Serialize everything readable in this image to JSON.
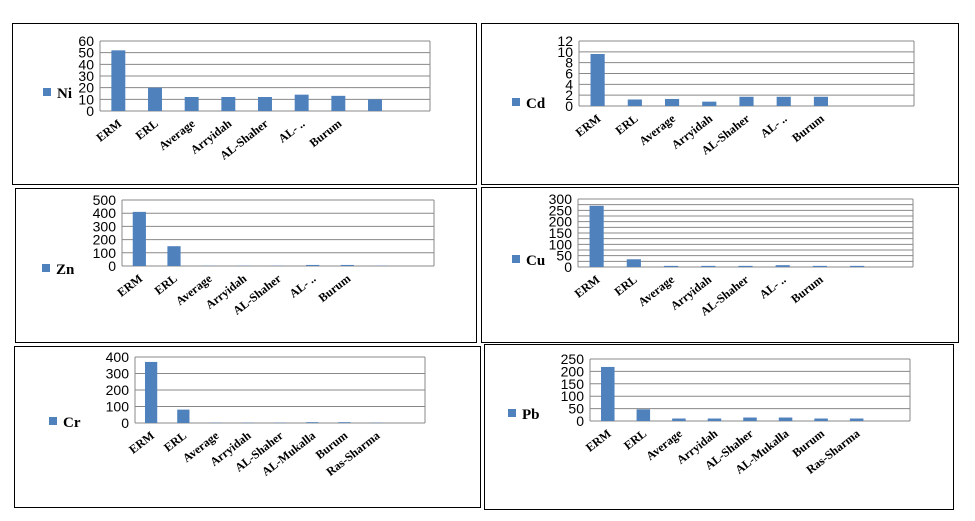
{
  "chart_data": [
    {
      "type": "bar",
      "series": [
        {
          "name": "Ni",
          "values": [
            52,
            20,
            12,
            12,
            12,
            14,
            13,
            10,
            null
          ]
        }
      ],
      "categories": [
        "ERM",
        "ERL",
        "Average",
        "Arryidah",
        "AL-Shaher",
        "AL- ..",
        "Burum",
        "",
        ""
      ],
      "ylim": [
        0,
        60
      ],
      "yticks": [
        0,
        10,
        20,
        30,
        40,
        50,
        60
      ],
      "grid": true,
      "legend": "left",
      "color": "#4F81BD"
    },
    {
      "type": "bar",
      "series": [
        {
          "name": "Cd",
          "values": [
            9.6,
            1.2,
            1.3,
            0.8,
            1.7,
            1.7,
            1.7,
            null,
            null
          ]
        }
      ],
      "categories": [
        "ERM",
        "ERL",
        "Average",
        "Arryidah",
        "AL-Shaher",
        "AL- ..",
        "Burum",
        "",
        ""
      ],
      "ylim": [
        0,
        12
      ],
      "yticks": [
        0,
        2,
        4,
        6,
        8,
        10,
        12
      ],
      "grid": true,
      "legend": "left",
      "color": "#4F81BD"
    },
    {
      "type": "bar",
      "series": [
        {
          "name": "Zn",
          "values": [
            410,
            150,
            2,
            2,
            2,
            8,
            8,
            2,
            null
          ]
        }
      ],
      "categories": [
        "ERM",
        "ERL",
        "Average",
        "Arryidah",
        "AL-Shaher",
        "AL- ..",
        "Burum",
        "",
        ""
      ],
      "ylim": [
        0,
        500
      ],
      "yticks": [
        0,
        100,
        200,
        300,
        400,
        500
      ],
      "grid": true,
      "legend": "left",
      "color": "#4F81BD"
    },
    {
      "type": "bar",
      "series": [
        {
          "name": "Cu",
          "values": [
            270,
            34,
            5,
            5,
            5,
            8,
            5,
            5,
            null
          ]
        }
      ],
      "categories": [
        "ERM",
        "ERL",
        "Average",
        "Arryidah",
        "AL-Shaher",
        "AL- ..",
        "Burum",
        "",
        ""
      ],
      "ylim": [
        0,
        300
      ],
      "yticks": [
        0,
        25,
        50,
        75,
        100,
        125,
        150,
        175,
        200,
        225,
        250,
        275,
        300
      ],
      "yticklabels": [
        "0",
        "",
        "50",
        "",
        "100",
        "",
        "150",
        "",
        "200",
        "",
        "250",
        "",
        "300"
      ],
      "grid": true,
      "legend": "left",
      "color": "#4F81BD"
    },
    {
      "type": "bar",
      "series": [
        {
          "name": "Cr",
          "values": [
            370,
            81,
            2,
            2,
            2,
            5,
            5,
            2,
            null
          ]
        }
      ],
      "categories": [
        "ERM",
        "ERL",
        "Average",
        "Arryidah",
        "AL-Shaher",
        "AL-Mukalla",
        "Burum",
        "Ras-Sharma",
        ""
      ],
      "ylim": [
        0,
        400
      ],
      "yticks": [
        0,
        100,
        200,
        300,
        400
      ],
      "grid": true,
      "legend": "left",
      "color": "#4F81BD"
    },
    {
      "type": "bar",
      "series": [
        {
          "name": "Pb",
          "values": [
            218,
            47,
            10,
            10,
            14,
            14,
            10,
            10,
            null
          ]
        }
      ],
      "categories": [
        "ERM",
        "ERL",
        "Average",
        "Arryidah",
        "AL-Shaher",
        "AL-Mukalla",
        "Burum",
        "Ras-Sharma",
        ""
      ],
      "ylim": [
        0,
        250
      ],
      "yticks": [
        0,
        50,
        100,
        150,
        200,
        250
      ],
      "yticklabels": [
        "0",
        "50",
        "100",
        "150",
        "200",
        "250"
      ],
      "grid": true,
      "legend": "left",
      "color": "#4F81BD"
    }
  ]
}
